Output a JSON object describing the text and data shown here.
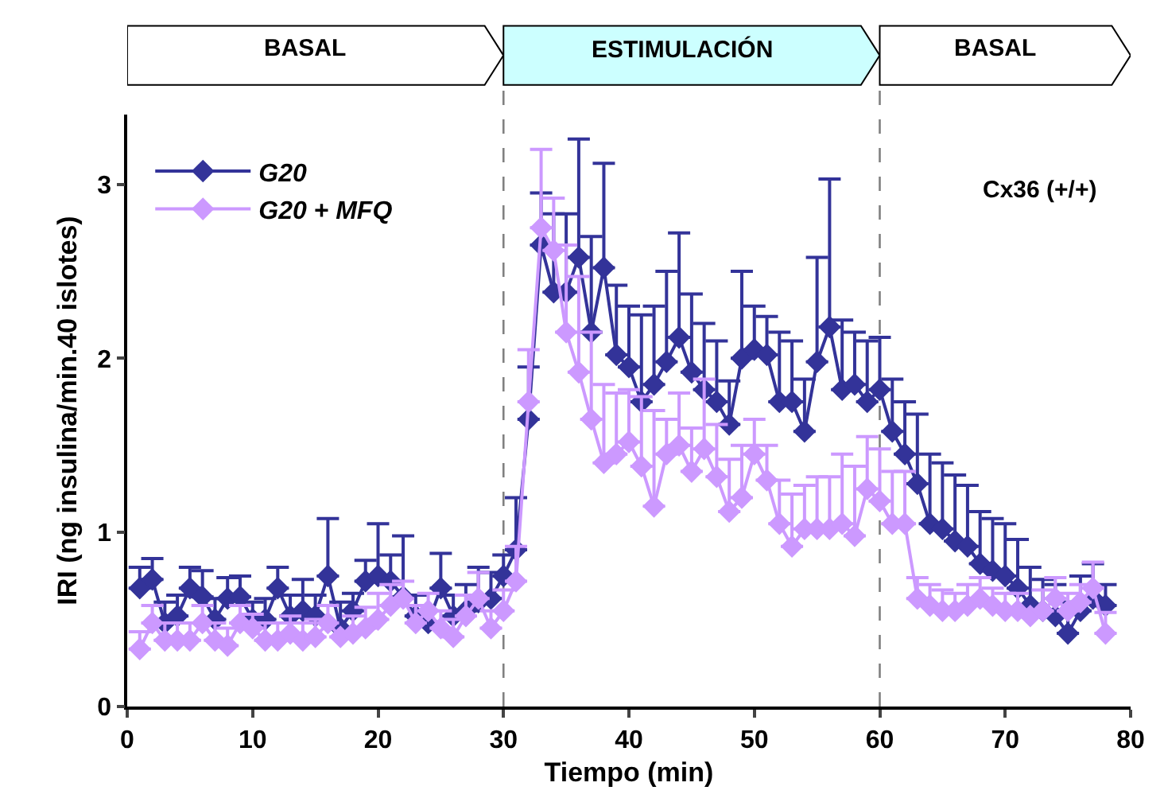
{
  "chart_data": {
    "type": "line",
    "xlabel": "Tiempo (min)",
    "ylabel": "IRI (ng insulina/min.40 islotes)",
    "x": [
      1,
      2,
      3,
      4,
      5,
      6,
      7,
      8,
      9,
      10,
      11,
      12,
      13,
      14,
      15,
      16,
      17,
      18,
      19,
      20,
      21,
      22,
      23,
      24,
      25,
      26,
      27,
      28,
      29,
      30,
      31,
      32,
      33,
      34,
      35,
      36,
      37,
      38,
      39,
      40,
      41,
      42,
      43,
      44,
      45,
      46,
      47,
      48,
      49,
      50,
      51,
      52,
      53,
      54,
      55,
      56,
      57,
      58,
      59,
      60,
      61,
      62,
      63,
      64,
      65,
      66,
      67,
      68,
      69,
      70,
      71,
      72,
      73,
      74,
      75,
      76,
      77,
      78
    ],
    "series": [
      {
        "name": "G20",
        "color": "#333399",
        "values": [
          0.68,
          0.73,
          0.48,
          0.52,
          0.68,
          0.63,
          0.5,
          0.62,
          0.63,
          0.5,
          0.5,
          0.68,
          0.52,
          0.55,
          0.52,
          0.75,
          0.45,
          0.55,
          0.72,
          0.75,
          0.72,
          0.63,
          0.52,
          0.48,
          0.68,
          0.52,
          0.55,
          0.6,
          0.62,
          0.75,
          0.9,
          1.65,
          2.65,
          2.38,
          2.38,
          2.58,
          2.15,
          2.52,
          2.02,
          1.95,
          1.75,
          1.85,
          1.98,
          2.12,
          1.92,
          1.82,
          1.75,
          1.62,
          2.0,
          2.05,
          2.02,
          1.75,
          1.75,
          1.58,
          1.98,
          2.18,
          1.82,
          1.85,
          1.75,
          1.82,
          1.58,
          1.45,
          1.28,
          1.05,
          1.02,
          0.95,
          0.92,
          0.82,
          0.78,
          0.75,
          0.68,
          0.58,
          0.55,
          0.52,
          0.42,
          0.55,
          0.62,
          0.58
        ],
        "errors": [
          [
            0.68,
            0.8
          ],
          [
            0.73,
            0.85
          ],
          [
            0.48,
            0.6
          ],
          [
            0.52,
            0.64
          ],
          [
            0.68,
            0.8
          ],
          [
            0.63,
            0.78
          ],
          [
            0.5,
            0.62
          ],
          [
            0.62,
            0.74
          ],
          [
            0.63,
            0.75
          ],
          [
            0.5,
            0.6
          ],
          [
            0.5,
            0.62
          ],
          [
            0.68,
            0.8
          ],
          [
            0.52,
            0.64
          ],
          [
            0.55,
            0.73
          ],
          [
            0.52,
            0.64
          ],
          [
            0.75,
            1.08
          ],
          [
            0.45,
            0.6
          ],
          [
            0.55,
            0.65
          ],
          [
            0.72,
            0.84
          ],
          [
            0.75,
            1.05
          ],
          [
            0.72,
            0.87
          ],
          [
            0.63,
            0.98
          ],
          [
            0.52,
            0.64
          ],
          null,
          [
            0.68,
            0.88
          ],
          [
            0.52,
            0.64
          ],
          [
            0.55,
            0.7
          ],
          [
            0.6,
            0.8
          ],
          [
            0.62,
            0.77
          ],
          [
            0.75,
            0.87
          ],
          [
            0.9,
            1.2
          ],
          [
            1.65,
            1.95
          ],
          [
            2.65,
            2.95
          ],
          [
            2.38,
            2.83
          ],
          [
            2.38,
            2.83
          ],
          [
            2.58,
            3.26
          ],
          [
            2.15,
            2.7
          ],
          [
            2.52,
            3.12
          ],
          [
            2.02,
            2.42
          ],
          [
            1.95,
            2.3
          ],
          [
            1.75,
            2.25
          ],
          [
            1.85,
            2.3
          ],
          [
            1.98,
            2.5
          ],
          [
            2.12,
            2.72
          ],
          [
            1.92,
            2.37
          ],
          [
            1.82,
            2.2
          ],
          [
            1.75,
            2.1
          ],
          [
            1.62,
            1.87
          ],
          [
            2.0,
            2.5
          ],
          [
            2.05,
            2.3
          ],
          [
            2.02,
            2.24
          ],
          [
            1.75,
            2.15
          ],
          [
            1.75,
            2.1
          ],
          [
            1.58,
            1.88
          ],
          [
            1.98,
            2.58
          ],
          [
            2.18,
            3.03
          ],
          [
            1.82,
            2.22
          ],
          [
            1.85,
            2.15
          ],
          [
            1.75,
            2.1
          ],
          [
            1.82,
            2.12
          ],
          [
            1.58,
            1.88
          ],
          [
            1.45,
            1.75
          ],
          [
            1.28,
            1.68
          ],
          [
            1.05,
            1.45
          ],
          [
            1.02,
            1.4
          ],
          [
            0.95,
            1.33
          ],
          [
            0.92,
            1.27
          ],
          [
            0.82,
            1.12
          ],
          [
            0.78,
            1.08
          ],
          [
            0.75,
            1.05
          ],
          [
            0.68,
            0.96
          ],
          [
            0.58,
            0.8
          ],
          [
            0.55,
            0.73
          ],
          [
            0.52,
            0.7
          ],
          [
            0.42,
            0.6
          ],
          [
            0.55,
            0.75
          ],
          [
            0.62,
            0.82
          ],
          [
            0.58,
            0.7
          ]
        ]
      },
      {
        "name": "G20 + MFQ",
        "color": "#cc99ff",
        "values": [
          0.33,
          0.48,
          0.38,
          0.38,
          0.38,
          0.48,
          0.38,
          0.35,
          0.48,
          0.45,
          0.38,
          0.38,
          0.42,
          0.38,
          0.4,
          0.48,
          0.4,
          0.42,
          0.45,
          0.5,
          0.58,
          0.62,
          0.48,
          0.55,
          0.45,
          0.4,
          0.52,
          0.62,
          0.45,
          0.55,
          0.72,
          1.75,
          2.75,
          2.62,
          2.15,
          1.92,
          1.65,
          1.4,
          1.45,
          1.52,
          1.38,
          1.15,
          1.45,
          1.5,
          1.35,
          1.48,
          1.32,
          1.12,
          1.2,
          1.45,
          1.3,
          1.05,
          0.92,
          1.02,
          1.02,
          1.02,
          1.05,
          0.98,
          1.25,
          1.18,
          1.05,
          1.05,
          0.62,
          0.58,
          0.55,
          0.55,
          0.58,
          0.62,
          0.58,
          0.55,
          0.55,
          0.52,
          0.55,
          0.62,
          0.55,
          0.6,
          0.68,
          0.42
        ],
        "errors": [
          [
            0.33,
            0.43
          ],
          [
            0.48,
            0.58
          ],
          [
            0.38,
            0.48
          ],
          [
            0.38,
            0.48
          ],
          [
            0.38,
            0.48
          ],
          [
            0.48,
            0.58
          ],
          [
            0.38,
            0.48
          ],
          [
            0.35,
            0.45
          ],
          [
            0.48,
            0.58
          ],
          [
            0.45,
            0.53
          ],
          [
            0.38,
            0.48
          ],
          [
            0.38,
            0.48
          ],
          [
            0.42,
            0.52
          ],
          [
            0.38,
            0.48
          ],
          [
            0.4,
            0.5
          ],
          [
            0.48,
            0.58
          ],
          null,
          [
            0.42,
            0.52
          ],
          [
            0.45,
            0.57
          ],
          [
            0.5,
            0.65
          ],
          [
            0.58,
            0.7
          ],
          [
            0.62,
            0.72
          ],
          [
            0.48,
            0.58
          ],
          [
            0.55,
            0.65
          ],
          [
            0.45,
            0.55
          ],
          [
            0.4,
            0.5
          ],
          [
            0.52,
            0.64
          ],
          [
            0.62,
            0.77
          ],
          [
            0.45,
            0.55
          ],
          [
            0.55,
            0.67
          ],
          [
            0.72,
            0.92
          ],
          [
            1.75,
            2.05
          ],
          [
            2.75,
            3.2
          ],
          [
            2.62,
            2.92
          ],
          [
            2.15,
            2.65
          ],
          [
            1.92,
            2.47
          ],
          [
            1.65,
            2.15
          ],
          [
            1.4,
            1.85
          ],
          [
            1.45,
            1.8
          ],
          [
            1.52,
            1.82
          ],
          [
            1.38,
            1.78
          ],
          [
            1.15,
            1.7
          ],
          [
            1.45,
            1.65
          ],
          [
            1.5,
            1.8
          ],
          [
            1.35,
            1.6
          ],
          [
            1.48,
            1.88
          ],
          [
            1.32,
            1.62
          ],
          [
            1.12,
            1.42
          ],
          [
            1.2,
            1.5
          ],
          [
            1.45,
            1.65
          ],
          [
            1.3,
            1.5
          ],
          [
            1.05,
            1.3
          ],
          [
            0.92,
            1.22
          ],
          [
            1.02,
            1.27
          ],
          [
            1.02,
            1.32
          ],
          [
            1.02,
            1.32
          ],
          [
            1.05,
            1.45
          ],
          [
            0.98,
            1.38
          ],
          [
            1.25,
            1.55
          ],
          [
            1.18,
            1.48
          ],
          [
            1.05,
            1.35
          ],
          [
            1.05,
            1.35
          ],
          [
            0.62,
            0.74
          ],
          [
            0.58,
            0.7
          ],
          [
            0.55,
            0.67
          ],
          [
            0.55,
            0.65
          ],
          [
            0.58,
            0.7
          ],
          [
            0.62,
            0.74
          ],
          [
            0.58,
            0.68
          ],
          [
            0.55,
            0.65
          ],
          [
            0.55,
            0.65
          ],
          null,
          [
            0.55,
            0.67
          ],
          [
            0.62,
            0.74
          ],
          [
            0.55,
            0.65
          ],
          [
            0.6,
            0.7
          ],
          [
            0.68,
            0.83
          ],
          [
            0.42,
            0.54
          ]
        ]
      }
    ],
    "xlim": [
      0,
      80
    ],
    "xticks": [
      0,
      10,
      20,
      30,
      40,
      50,
      60,
      70,
      80
    ],
    "ylim": [
      0,
      3.4
    ],
    "yticks": [
      0,
      1,
      2,
      3
    ],
    "marker": "diamond",
    "legend": "top left",
    "ref_lines": [
      {
        "axis": "x",
        "value": 30,
        "color": "#808080",
        "line_style": "dashed"
      },
      {
        "axis": "x",
        "value": 60,
        "color": "#808080",
        "line_style": "dashed"
      }
    ],
    "annotations": [
      "BASAL",
      "ESTIMULACIÓN",
      "BASAL",
      "Cx36 (+/+)"
    ]
  }
}
